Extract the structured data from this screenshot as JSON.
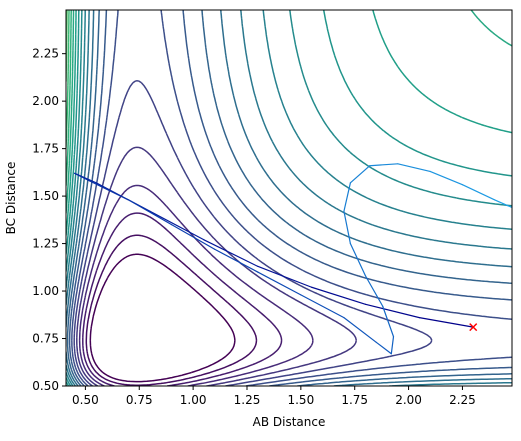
{
  "chart_data": {
    "type": "contour",
    "title": "",
    "xlabel": "AB Distance",
    "ylabel": "BC Distance",
    "xlim": [
      0.41,
      2.48
    ],
    "ylim": [
      0.5,
      2.48
    ],
    "xticks": [
      "0.50",
      "0.75",
      "1.00",
      "1.25",
      "1.50",
      "1.75",
      "2.00",
      "2.25"
    ],
    "yticks": [
      "0.50",
      "0.75",
      "1.00",
      "1.25",
      "1.50",
      "1.75",
      "2.00",
      "2.25"
    ],
    "xtick_values": [
      0.5,
      0.75,
      1.0,
      1.25,
      1.5,
      1.75,
      2.0,
      2.25
    ],
    "ytick_values": [
      0.5,
      0.75,
      1.0,
      1.25,
      1.5,
      1.75,
      2.0,
      2.25
    ],
    "colormap": "viridis",
    "surface": {
      "description_of_levels": "approx. 26 contour levels from dark purple (low energy) to yellow (high energy)",
      "level_count": 26
    },
    "trajectory": {
      "color_start": "#00008b",
      "color_end": "#1ea0e6",
      "points": [
        [
          2.3,
          0.81
        ],
        [
          2.05,
          0.86
        ],
        [
          1.8,
          0.93
        ],
        [
          1.55,
          1.02
        ],
        [
          1.3,
          1.13
        ],
        [
          1.05,
          1.27
        ],
        [
          0.8,
          1.42
        ],
        [
          0.55,
          1.57
        ],
        [
          0.45,
          1.62
        ],
        [
          0.52,
          1.58
        ],
        [
          0.7,
          1.48
        ],
        [
          0.9,
          1.35
        ],
        [
          1.1,
          1.22
        ],
        [
          1.3,
          1.1
        ],
        [
          1.5,
          0.98
        ],
        [
          1.7,
          0.86
        ],
        [
          1.85,
          0.73
        ],
        [
          1.92,
          0.67
        ],
        [
          1.93,
          0.76
        ],
        [
          1.88,
          0.92
        ],
        [
          1.8,
          1.08
        ],
        [
          1.73,
          1.25
        ],
        [
          1.7,
          1.42
        ],
        [
          1.73,
          1.57
        ],
        [
          1.82,
          1.66
        ],
        [
          1.95,
          1.67
        ],
        [
          2.1,
          1.63
        ],
        [
          2.25,
          1.56
        ],
        [
          2.4,
          1.48
        ],
        [
          2.48,
          1.44
        ]
      ]
    },
    "marker": {
      "x": 2.3,
      "y": 0.81,
      "symbol": "x",
      "color": "#ff0000"
    }
  }
}
